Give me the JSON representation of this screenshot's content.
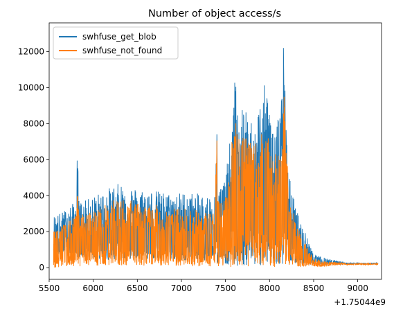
{
  "chart_data": {
    "type": "line",
    "title": "Number of object access/s",
    "xlabel": "",
    "ylabel": "",
    "x_offset_label": "+1.75044e9",
    "xlim": [
      5500,
      9270
    ],
    "ylim": [
      -650,
      13600
    ],
    "x_ticks": [
      5500,
      6000,
      6500,
      7000,
      7500,
      8000,
      8500,
      9000
    ],
    "y_ticks": [
      0,
      2000,
      4000,
      6000,
      8000,
      10000,
      12000
    ],
    "legend_position": "top-left",
    "grid": false,
    "series": [
      {
        "name": "swhfuse_get_blob",
        "color": "#1f77b4",
        "upper": [
          [
            5550,
            2900
          ],
          [
            5600,
            3000
          ],
          [
            5650,
            3100
          ],
          [
            5700,
            3300
          ],
          [
            5750,
            3500
          ],
          [
            5800,
            3700
          ],
          [
            5820,
            6450
          ],
          [
            5840,
            3700
          ],
          [
            5900,
            3700
          ],
          [
            6000,
            4000
          ],
          [
            6100,
            4200
          ],
          [
            6200,
            4500
          ],
          [
            6300,
            4700
          ],
          [
            6400,
            4600
          ],
          [
            6500,
            4400
          ],
          [
            6600,
            4350
          ],
          [
            6700,
            4300
          ],
          [
            6800,
            4200
          ],
          [
            6900,
            4100
          ],
          [
            7000,
            4200
          ],
          [
            7100,
            4200
          ],
          [
            7200,
            4100
          ],
          [
            7300,
            4000
          ],
          [
            7380,
            4100
          ],
          [
            7400,
            8150
          ],
          [
            7420,
            4400
          ],
          [
            7500,
            5100
          ],
          [
            7550,
            7000
          ],
          [
            7610,
            10750
          ],
          [
            7640,
            8800
          ],
          [
            7700,
            9000
          ],
          [
            7750,
            8500
          ],
          [
            7800,
            8200
          ],
          [
            7850,
            8400
          ],
          [
            7900,
            9500
          ],
          [
            7950,
            10300
          ],
          [
            8000,
            9300
          ],
          [
            8050,
            8800
          ],
          [
            8100,
            8700
          ],
          [
            8140,
            10500
          ],
          [
            8160,
            12850
          ],
          [
            8180,
            9700
          ],
          [
            8220,
            5200
          ],
          [
            8300,
            3300
          ],
          [
            8400,
            2000
          ],
          [
            8500,
            700
          ],
          [
            8600,
            600
          ],
          [
            8700,
            450
          ],
          [
            8800,
            350
          ],
          [
            8850,
            300
          ],
          [
            8900,
            250
          ],
          [
            9000,
            250
          ],
          [
            9100,
            250
          ],
          [
            9230,
            250
          ]
        ],
        "lower": [
          [
            5550,
            800
          ],
          [
            5700,
            600
          ],
          [
            5900,
            500
          ],
          [
            6200,
            450
          ],
          [
            6500,
            500
          ],
          [
            6800,
            450
          ],
          [
            7100,
            400
          ],
          [
            7380,
            350
          ],
          [
            7420,
            250
          ],
          [
            7600,
            100
          ],
          [
            8000,
            100
          ],
          [
            8200,
            200
          ],
          [
            8400,
            200
          ],
          [
            8600,
            180
          ],
          [
            8800,
            220
          ],
          [
            9230,
            200
          ]
        ]
      },
      {
        "name": "swhfuse_not_found",
        "color": "#ff7f0e",
        "upper": [
          [
            5550,
            2200
          ],
          [
            5600,
            2300
          ],
          [
            5650,
            2400
          ],
          [
            5700,
            2500
          ],
          [
            5750,
            2700
          ],
          [
            5800,
            2900
          ],
          [
            5820,
            4400
          ],
          [
            5840,
            3000
          ],
          [
            5900,
            3000
          ],
          [
            6000,
            3200
          ],
          [
            6100,
            3400
          ],
          [
            6200,
            3700
          ],
          [
            6300,
            3850
          ],
          [
            6400,
            3800
          ],
          [
            6500,
            3600
          ],
          [
            6600,
            3500
          ],
          [
            6700,
            3500
          ],
          [
            6800,
            3400
          ],
          [
            6900,
            3300
          ],
          [
            7000,
            3350
          ],
          [
            7100,
            3300
          ],
          [
            7200,
            3200
          ],
          [
            7300,
            3100
          ],
          [
            7380,
            3200
          ],
          [
            7400,
            7600
          ],
          [
            7420,
            3700
          ],
          [
            7500,
            4100
          ],
          [
            7550,
            5600
          ],
          [
            7610,
            9750
          ],
          [
            7640,
            7500
          ],
          [
            7700,
            7900
          ],
          [
            7750,
            7200
          ],
          [
            7800,
            6800
          ],
          [
            7850,
            7000
          ],
          [
            7900,
            7600
          ],
          [
            7950,
            7400
          ],
          [
            8000,
            7100
          ],
          [
            8050,
            6600
          ],
          [
            8100,
            6200
          ],
          [
            8140,
            8500
          ],
          [
            8160,
            10150
          ],
          [
            8180,
            7800
          ],
          [
            8220,
            4300
          ],
          [
            8300,
            2500
          ],
          [
            8400,
            1400
          ],
          [
            8500,
            500
          ],
          [
            8600,
            400
          ],
          [
            8700,
            300
          ],
          [
            8800,
            300
          ],
          [
            8850,
            250
          ],
          [
            8900,
            230
          ],
          [
            9000,
            230
          ],
          [
            9100,
            230
          ],
          [
            9230,
            230
          ]
        ],
        "lower": [
          [
            5550,
            0
          ],
          [
            5700,
            50
          ],
          [
            5900,
            80
          ],
          [
            6200,
            100
          ],
          [
            6500,
            120
          ],
          [
            6800,
            100
          ],
          [
            7100,
            80
          ],
          [
            7380,
            60
          ],
          [
            7420,
            50
          ],
          [
            7600,
            30
          ],
          [
            8000,
            30
          ],
          [
            8200,
            50
          ],
          [
            8400,
            60
          ],
          [
            8600,
            60
          ],
          [
            8800,
            150
          ],
          [
            9230,
            180
          ]
        ]
      }
    ]
  }
}
